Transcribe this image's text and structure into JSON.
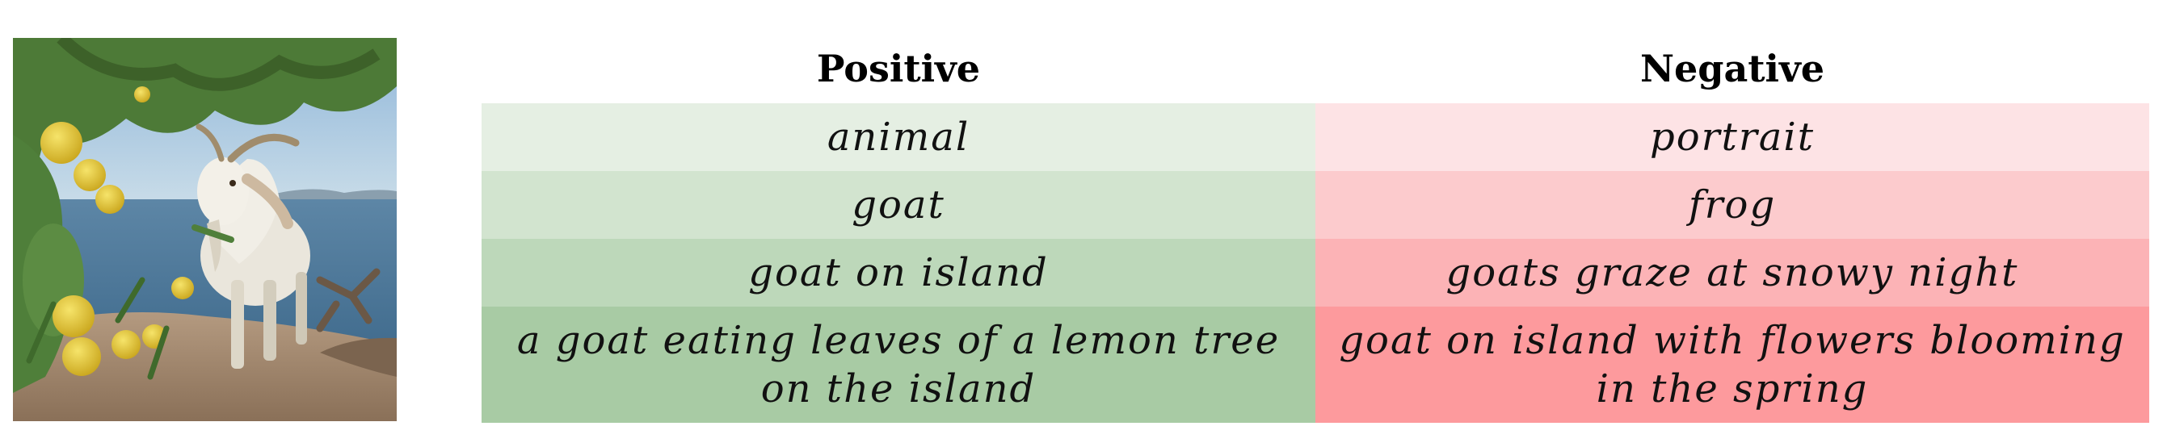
{
  "headers": {
    "positive": "Positive",
    "negative": "Negative"
  },
  "rows": [
    {
      "positive": "animal",
      "negative": "portrait",
      "positive_color": "#e5efe3",
      "negative_color": "#fde3e5"
    },
    {
      "positive": "goat",
      "negative": "frog",
      "positive_color": "#d2e4cf",
      "negative_color": "#fccbcd"
    },
    {
      "positive": "goat on island",
      "negative": "goats graze at snowy night",
      "positive_color": "#bdd8ba",
      "negative_color": "#fcb3b6"
    },
    {
      "positive": "a goat eating leaves of a lemon tree on the island",
      "negative": "goat on island with flowers blooming in the spring",
      "positive_color": "#a8cba4",
      "negative_color": "#fd9a9d"
    }
  ]
}
